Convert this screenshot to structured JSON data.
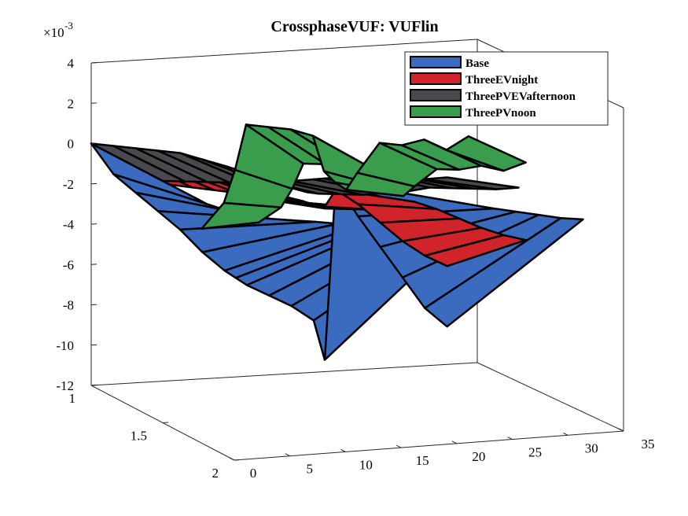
{
  "chart_data": {
    "type": "surface3d",
    "title": "CrossphaseVUF: VUFlin",
    "exponent_label": "×10",
    "exponent_power": "-3",
    "zticks": [
      "4",
      "2",
      "0",
      "-2",
      "-4",
      "-6",
      "-8",
      "-10",
      "-12"
    ],
    "zlim": [
      -12,
      4
    ],
    "xticks": [
      "0",
      "5",
      "10",
      "15",
      "20",
      "25",
      "30",
      "35"
    ],
    "xlim": [
      0,
      35
    ],
    "yticks": [
      "1",
      "1.5",
      "2"
    ],
    "ylim": [
      1,
      2
    ],
    "legend_position": "top-right",
    "series": [
      {
        "name": "Base",
        "color": "#3b6bbf",
        "x": [
          0,
          2,
          4,
          6,
          8,
          10,
          12,
          13,
          14,
          16,
          18,
          20,
          21,
          22,
          24,
          26,
          28,
          30,
          32
        ],
        "z": [
          0,
          -1.6,
          -2.6,
          -3.6,
          -4.6,
          -5.8,
          -6.8,
          -7.2,
          -7.6,
          -8.2,
          -8.8,
          -9.6,
          -11.6,
          -2.8,
          -4.6,
          -6.2,
          -7.8,
          -9.4,
          -10.4
        ]
      },
      {
        "name": "ThreeEVnight",
        "color": "#d0242a",
        "x": [
          0,
          2,
          4,
          6,
          8,
          10,
          12,
          13,
          14,
          16,
          18,
          20,
          21,
          22,
          24,
          26,
          28,
          30,
          32
        ],
        "z": [
          0,
          -0.4,
          -0.8,
          -1.2,
          -1.6,
          -2.0,
          -2.4,
          -2.8,
          -3.2,
          -3.4,
          -3.6,
          -3.8,
          -4.0,
          -3.2,
          -4.0,
          -5.0,
          -6.0,
          -6.8,
          -7.4
        ]
      },
      {
        "name": "ThreePVEVafternoon",
        "color": "#4a4a4e",
        "x": [
          0,
          2,
          4,
          6,
          8,
          10,
          12,
          13,
          14,
          16,
          18,
          20,
          21,
          22,
          24,
          26,
          28,
          30,
          32
        ],
        "z": [
          0,
          -0.2,
          -0.4,
          -0.6,
          -0.8,
          -1.2,
          -1.6,
          -2.0,
          -2.2,
          -2.4,
          -2.6,
          -2.6,
          -2.6,
          -2.6,
          -2.4,
          -2.6,
          -2.8,
          -3.0,
          -3.0
        ]
      },
      {
        "name": "ThreePVnoon",
        "color": "#3a9d4e",
        "x": [
          8,
          10,
          11,
          12,
          14,
          16,
          18,
          19,
          20,
          21,
          22,
          24,
          26,
          28,
          30,
          32
        ],
        "z": [
          -4.0,
          -2.8,
          -1.2,
          1.0,
          0.8,
          0.6,
          0.2,
          -1.6,
          -2.2,
          -2.6,
          -1.8,
          -0.4,
          -0.6,
          -0.4,
          -1.0,
          -0.4
        ]
      }
    ]
  }
}
